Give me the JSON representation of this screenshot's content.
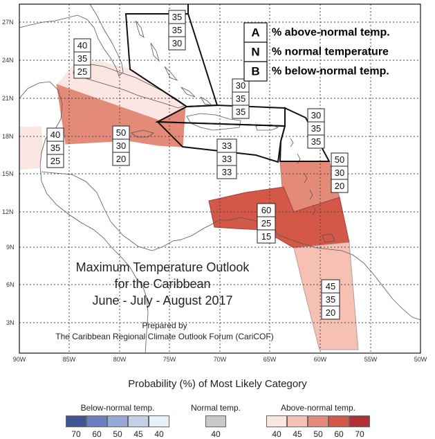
{
  "title": {
    "lines": [
      "Maximum Temperature Outlook",
      "for the Caribbean",
      "June - July - August 2017"
    ]
  },
  "prepared": {
    "lines": [
      "Prepared by",
      "The Caribbean Regional Climate Outlook Forum (CariCOF)"
    ]
  },
  "key": [
    {
      "letter": "A",
      "text": "% above-normal temp."
    },
    {
      "letter": "N",
      "text": "% normal temperature"
    },
    {
      "letter": "B",
      "text": "% below-normal temp."
    }
  ],
  "lat_labels": [
    "27N",
    "24N",
    "21N",
    "18N",
    "15N",
    "12N",
    "9N",
    "6N",
    "3N"
  ],
  "lon_labels": [
    "90W",
    "85W",
    "80W",
    "75W",
    "70W",
    "65W",
    "60W",
    "55W",
    "50W"
  ],
  "regions": [
    {
      "name": "bahamas",
      "values": [
        "35",
        "35",
        "30"
      ]
    },
    {
      "name": "cuba-east",
      "values": [
        "40",
        "35",
        "25"
      ]
    },
    {
      "name": "belize-yucatan",
      "values": [
        "40",
        "35",
        "25"
      ]
    },
    {
      "name": "jamaica-cayman",
      "values": [
        "50",
        "30",
        "20"
      ]
    },
    {
      "name": "turks-caicos",
      "values": [
        "30",
        "35",
        "35"
      ]
    },
    {
      "name": "hispaniola-puerto-rico",
      "values": [
        "33",
        "33",
        "33"
      ]
    },
    {
      "name": "leeward-islands",
      "values": [
        "30",
        "35",
        "35"
      ]
    },
    {
      "name": "windward-islands",
      "values": [
        "50",
        "30",
        "20"
      ]
    },
    {
      "name": "southern-caribbean",
      "values": [
        "60",
        "25",
        "15"
      ]
    },
    {
      "name": "guianas",
      "values": [
        "45",
        "35",
        "20"
      ]
    }
  ],
  "colors": {
    "above_40": "#fbe6e2",
    "above_45": "#f6c0b2",
    "above_50": "#e48a78",
    "above_60": "#d35848",
    "above_70": "#b03036",
    "normal_40": "#c8c8c8",
    "below_40": "#e8f0fb",
    "below_45": "#c3d0ea",
    "below_50": "#95a8d6",
    "below_60": "#6a80c2",
    "below_70": "#3d5590"
  },
  "scale": {
    "title": "Probability (%) of Most Likely Category",
    "below": {
      "title": "Below-normal temp.",
      "ticks": [
        "70",
        "60",
        "50",
        "45",
        "40"
      ]
    },
    "normal": {
      "title": "Normal temp.",
      "ticks": [
        "40"
      ]
    },
    "above": {
      "title": "Above-normal temp.",
      "ticks": [
        "40",
        "45",
        "50",
        "60",
        "70"
      ]
    }
  }
}
